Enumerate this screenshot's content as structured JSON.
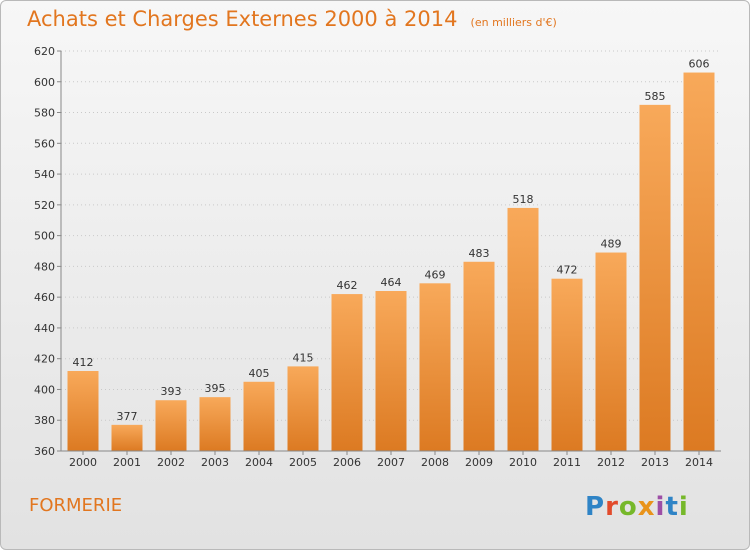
{
  "title": "Achats et Charges Externes 2000 à 2014",
  "subtitle": "(en milliers d'€)",
  "place": "FORMERIE",
  "logo": {
    "text": "Proxiti",
    "colors": [
      "#2f84c6",
      "#e24b2c",
      "#76b82a",
      "#e9931a",
      "#9d4ea6",
      "#2f84c6",
      "#76b82a"
    ]
  },
  "colors": {
    "bar_top": "#f8a95a",
    "bar_bottom": "#dc7a22",
    "accent": "#e2761f"
  },
  "chart_data": {
    "type": "bar",
    "categories": [
      "2000",
      "2001",
      "2002",
      "2003",
      "2004",
      "2005",
      "2006",
      "2007",
      "2008",
      "2009",
      "2010",
      "2011",
      "2012",
      "2013",
      "2014"
    ],
    "values": [
      412,
      377,
      393,
      395,
      405,
      415,
      462,
      464,
      469,
      483,
      518,
      472,
      489,
      585,
      606
    ],
    "ylim": [
      360,
      620
    ],
    "yticks": [
      360,
      380,
      400,
      420,
      440,
      460,
      480,
      500,
      520,
      540,
      560,
      580,
      600,
      620
    ],
    "grid": true
  }
}
